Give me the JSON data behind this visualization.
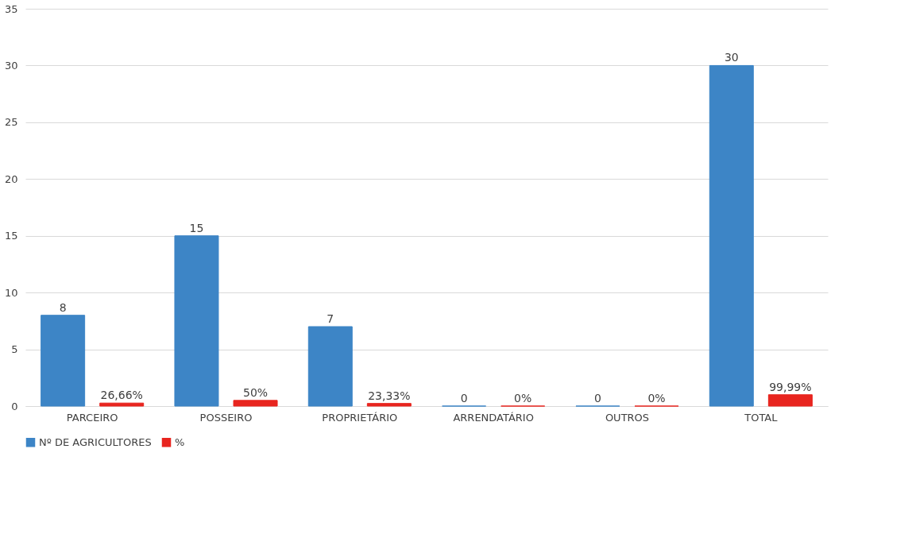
{
  "chart_data": {
    "type": "bar",
    "categories": [
      "PARCEIRO",
      "POSSEIRO",
      "PROPRIETÁRIO",
      "ARRENDATÁRIO",
      "OUTROS",
      "TOTAL"
    ],
    "series": [
      {
        "name": "Nº DE AGRICULTORES",
        "color": "#3d85c6",
        "values": [
          8,
          15,
          7,
          0,
          0,
          30
        ],
        "value_labels": [
          "8",
          "15",
          "7",
          "0",
          "0",
          "30"
        ]
      },
      {
        "name": "%",
        "color": "#e8251f",
        "values": [
          0.2666,
          0.5,
          0.2333,
          0,
          0,
          0.9999
        ],
        "value_labels": [
          "26,66%",
          "50%",
          "23,33%",
          "0%",
          "0%",
          "99,99%"
        ]
      }
    ],
    "ylim": [
      0,
      35
    ],
    "yticks": [
      0,
      5,
      10,
      15,
      20,
      25,
      30,
      35
    ],
    "grid": "y",
    "legend": "bottom"
  }
}
